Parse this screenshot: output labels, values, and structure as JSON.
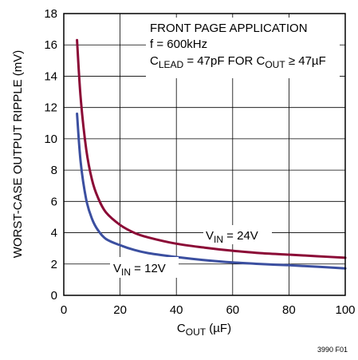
{
  "chart_data": {
    "type": "line",
    "xlabel": {
      "main": "C",
      "sub": "OUT",
      "rest": " (µF)"
    },
    "ylabel": "WORST-CASE OUTPUT RIPPLE (mV)",
    "xlim": [
      0,
      100
    ],
    "ylim": [
      0,
      18
    ],
    "x_ticks": [
      0,
      20,
      40,
      60,
      80,
      100
    ],
    "y_ticks": [
      0,
      2,
      4,
      6,
      8,
      10,
      12,
      14,
      16,
      18
    ],
    "grid": true,
    "annotation": {
      "line1": "FRONT PAGE APPLICATION",
      "line2": "f = 600kHz",
      "line3": {
        "a": "C",
        "a_sub": "LEAD",
        "b": " = 47pF FOR C",
        "b_sub": "OUT",
        "c": " ≥ 47µF"
      }
    },
    "series": [
      {
        "label": {
          "main": "V",
          "sub": "IN",
          "rest": " = 24V"
        },
        "color": "#8b0a36",
        "x": [
          4.7,
          6,
          8,
          10,
          12,
          15,
          20,
          25,
          30,
          40,
          50,
          60,
          70,
          80,
          90,
          100
        ],
        "y": [
          16.3,
          12.6,
          9.3,
          7.4,
          6.3,
          5.3,
          4.5,
          4.0,
          3.7,
          3.3,
          3.05,
          2.85,
          2.7,
          2.6,
          2.5,
          2.4
        ]
      },
      {
        "label": {
          "main": "V",
          "sub": "IN",
          "rest": " = 12V"
        },
        "color": "#3b4fa0",
        "x": [
          4.7,
          6,
          8,
          10,
          12,
          15,
          20,
          25,
          30,
          40,
          50,
          60,
          70,
          80,
          90,
          100
        ],
        "y": [
          11.6,
          8.5,
          6.1,
          4.9,
          4.2,
          3.6,
          3.2,
          2.9,
          2.7,
          2.45,
          2.25,
          2.1,
          2.0,
          1.92,
          1.83,
          1.72
        ]
      }
    ]
  },
  "figure_id": "3990 F01"
}
